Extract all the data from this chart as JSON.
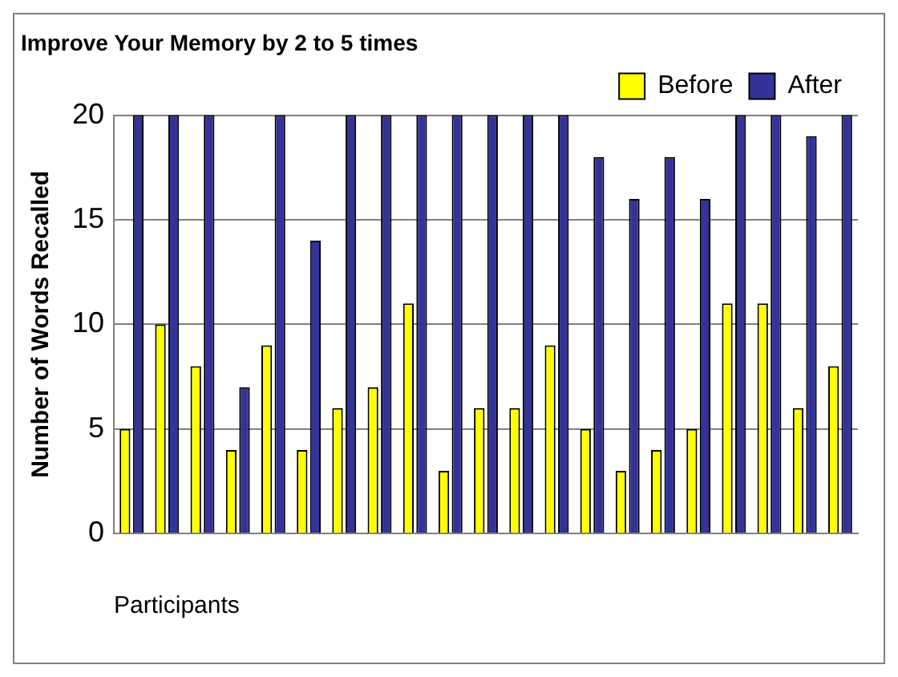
{
  "chart_data": {
    "type": "bar",
    "title": "Improve Your Memory by 2 to 5 times",
    "xlabel": "Participants",
    "ylabel": "Number of Words Recalled",
    "categories": [
      null,
      null,
      null,
      null,
      null,
      null,
      null,
      null,
      null,
      null,
      null,
      null,
      null,
      null,
      null,
      null,
      null,
      null,
      null,
      null,
      null
    ],
    "series": [
      {
        "name": "Before",
        "color": "#ffff00",
        "values": [
          5,
          10,
          8,
          4,
          9,
          4,
          6,
          7,
          11,
          3,
          6,
          6,
          9,
          5,
          3,
          4,
          5,
          11,
          11,
          6,
          8
        ]
      },
      {
        "name": "After",
        "color": "#333399",
        "values": [
          20,
          20,
          20,
          7,
          20,
          14,
          20,
          20,
          20,
          20,
          20,
          20,
          20,
          18,
          16,
          18,
          16,
          20,
          20,
          19,
          20
        ]
      }
    ],
    "ylim": [
      0,
      20
    ],
    "yticks": [
      0,
      5,
      10,
      15,
      20
    ],
    "grid": "y",
    "legend": "top right"
  }
}
